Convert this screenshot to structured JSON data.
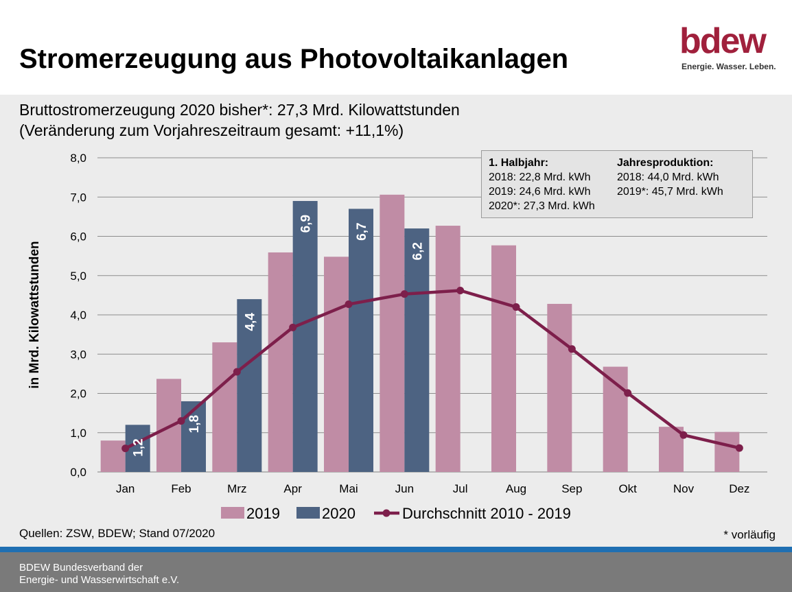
{
  "title": "Stromerzeugung aus Photovoltaikanlagen",
  "logo": {
    "word": "bdew",
    "tagline": "Energie. Wasser. Leben."
  },
  "subtitle": {
    "line1": "Bruttostromerzeugung 2020 bisher*: 27,3 Mrd. Kilowattstunden",
    "line2": "(Veränderung zum Vorjahreszeitraum gesamt: +11,1%)"
  },
  "infobox": {
    "left_header": "1. Halbjahr:",
    "left_rows": [
      "2018:  22,8 Mrd. kWh",
      "2019:  24,6 Mrd. kWh",
      "2020*: 27,3 Mrd. kWh"
    ],
    "right_header": "Jahresproduktion:",
    "right_rows": [
      "2018:   44,0 Mrd. kWh",
      "2019*:  45,7 Mrd. kWh"
    ]
  },
  "source": "Quellen: ZSW, BDEW; Stand 07/2020",
  "footnote": "* vorläufig",
  "footer": {
    "line1": "BDEW Bundesverband der",
    "line2": "Energie- und Wasserwirtschaft e.V."
  },
  "colors": {
    "series_2019": "#c08ca5",
    "series_2020": "#4d6382",
    "average": "#7d1f4b",
    "brand": "#a0203c",
    "stripe": "#1f6fb2"
  },
  "chart_data": {
    "type": "bar",
    "categories": [
      "Jan",
      "Feb",
      "Mrz",
      "Apr",
      "Mai",
      "Jun",
      "Jul",
      "Aug",
      "Sep",
      "Okt",
      "Nov",
      "Dez"
    ],
    "series": [
      {
        "name": "2019",
        "kind": "bar",
        "values": [
          0.8,
          2.37,
          3.3,
          5.59,
          5.48,
          7.06,
          6.27,
          5.77,
          4.28,
          2.68,
          1.15,
          1.02
        ]
      },
      {
        "name": "2020",
        "kind": "bar",
        "values": [
          1.2,
          1.8,
          4.4,
          6.9,
          6.7,
          6.2,
          null,
          null,
          null,
          null,
          null,
          null
        ],
        "data_labels": [
          "1,2",
          "1,8",
          "4,4",
          "6,9",
          "6,7",
          "6,2"
        ]
      },
      {
        "name": "Durchschnitt 2010 - 2019",
        "kind": "line",
        "values": [
          0.6,
          1.3,
          2.55,
          3.68,
          4.27,
          4.53,
          4.62,
          4.2,
          3.13,
          2.01,
          0.94,
          0.61
        ]
      }
    ],
    "ylabel": "in Mrd. Kilowattstunden",
    "ylim": [
      0,
      8
    ],
    "yticks": [
      "0,0",
      "1,0",
      "2,0",
      "3,0",
      "4,0",
      "5,0",
      "6,0",
      "7,0",
      "8,0"
    ],
    "grid": true,
    "legend": "bottom"
  }
}
